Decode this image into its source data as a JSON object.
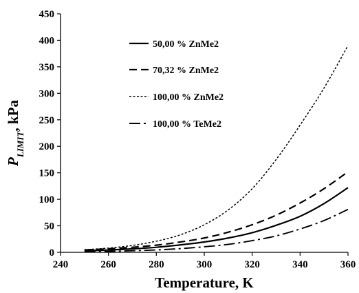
{
  "chart_data": {
    "type": "line",
    "title": "",
    "xlabel": "Temperature, K",
    "ylabel": {
      "main": "P",
      "subscript": "LIMIT",
      "suffix": ", kPa"
    },
    "xlim": [
      240,
      360
    ],
    "ylim": [
      0,
      450
    ],
    "xticks": [
      "240",
      "260",
      "280",
      "300",
      "320",
      "340",
      "360"
    ],
    "yticks": [
      "0",
      "50",
      "100",
      "150",
      "200",
      "250",
      "300",
      "350",
      "400",
      "450"
    ],
    "grid": false,
    "legend_position": "top-left",
    "x": [
      250,
      260,
      270,
      280,
      290,
      300,
      310,
      320,
      330,
      340,
      350,
      360
    ],
    "series": [
      {
        "name": "50,00 % ZnMe2",
        "dash": "solid",
        "values": [
          3,
          4.5,
          6.5,
          9.5,
          14,
          19.5,
          27,
          37,
          51,
          68,
          92,
          122
        ]
      },
      {
        "name": "70,32 % ZnMe2",
        "dash": "dashed",
        "values": [
          4.5,
          6.5,
          9.5,
          13.5,
          19.5,
          27,
          38,
          52,
          70,
          93,
          120,
          152
        ]
      },
      {
        "name": "100,00 % ZnMe2",
        "dash": "dotted",
        "values": [
          5,
          8,
          13,
          21,
          33,
          52,
          80,
          120,
          175,
          240,
          310,
          390
        ]
      },
      {
        "name": "100,00 % TeMe2",
        "dash": "dash-dot",
        "values": [
          1,
          1.8,
          3,
          4.5,
          7,
          10.5,
          15,
          22,
          31,
          44,
          60,
          81
        ]
      }
    ]
  }
}
